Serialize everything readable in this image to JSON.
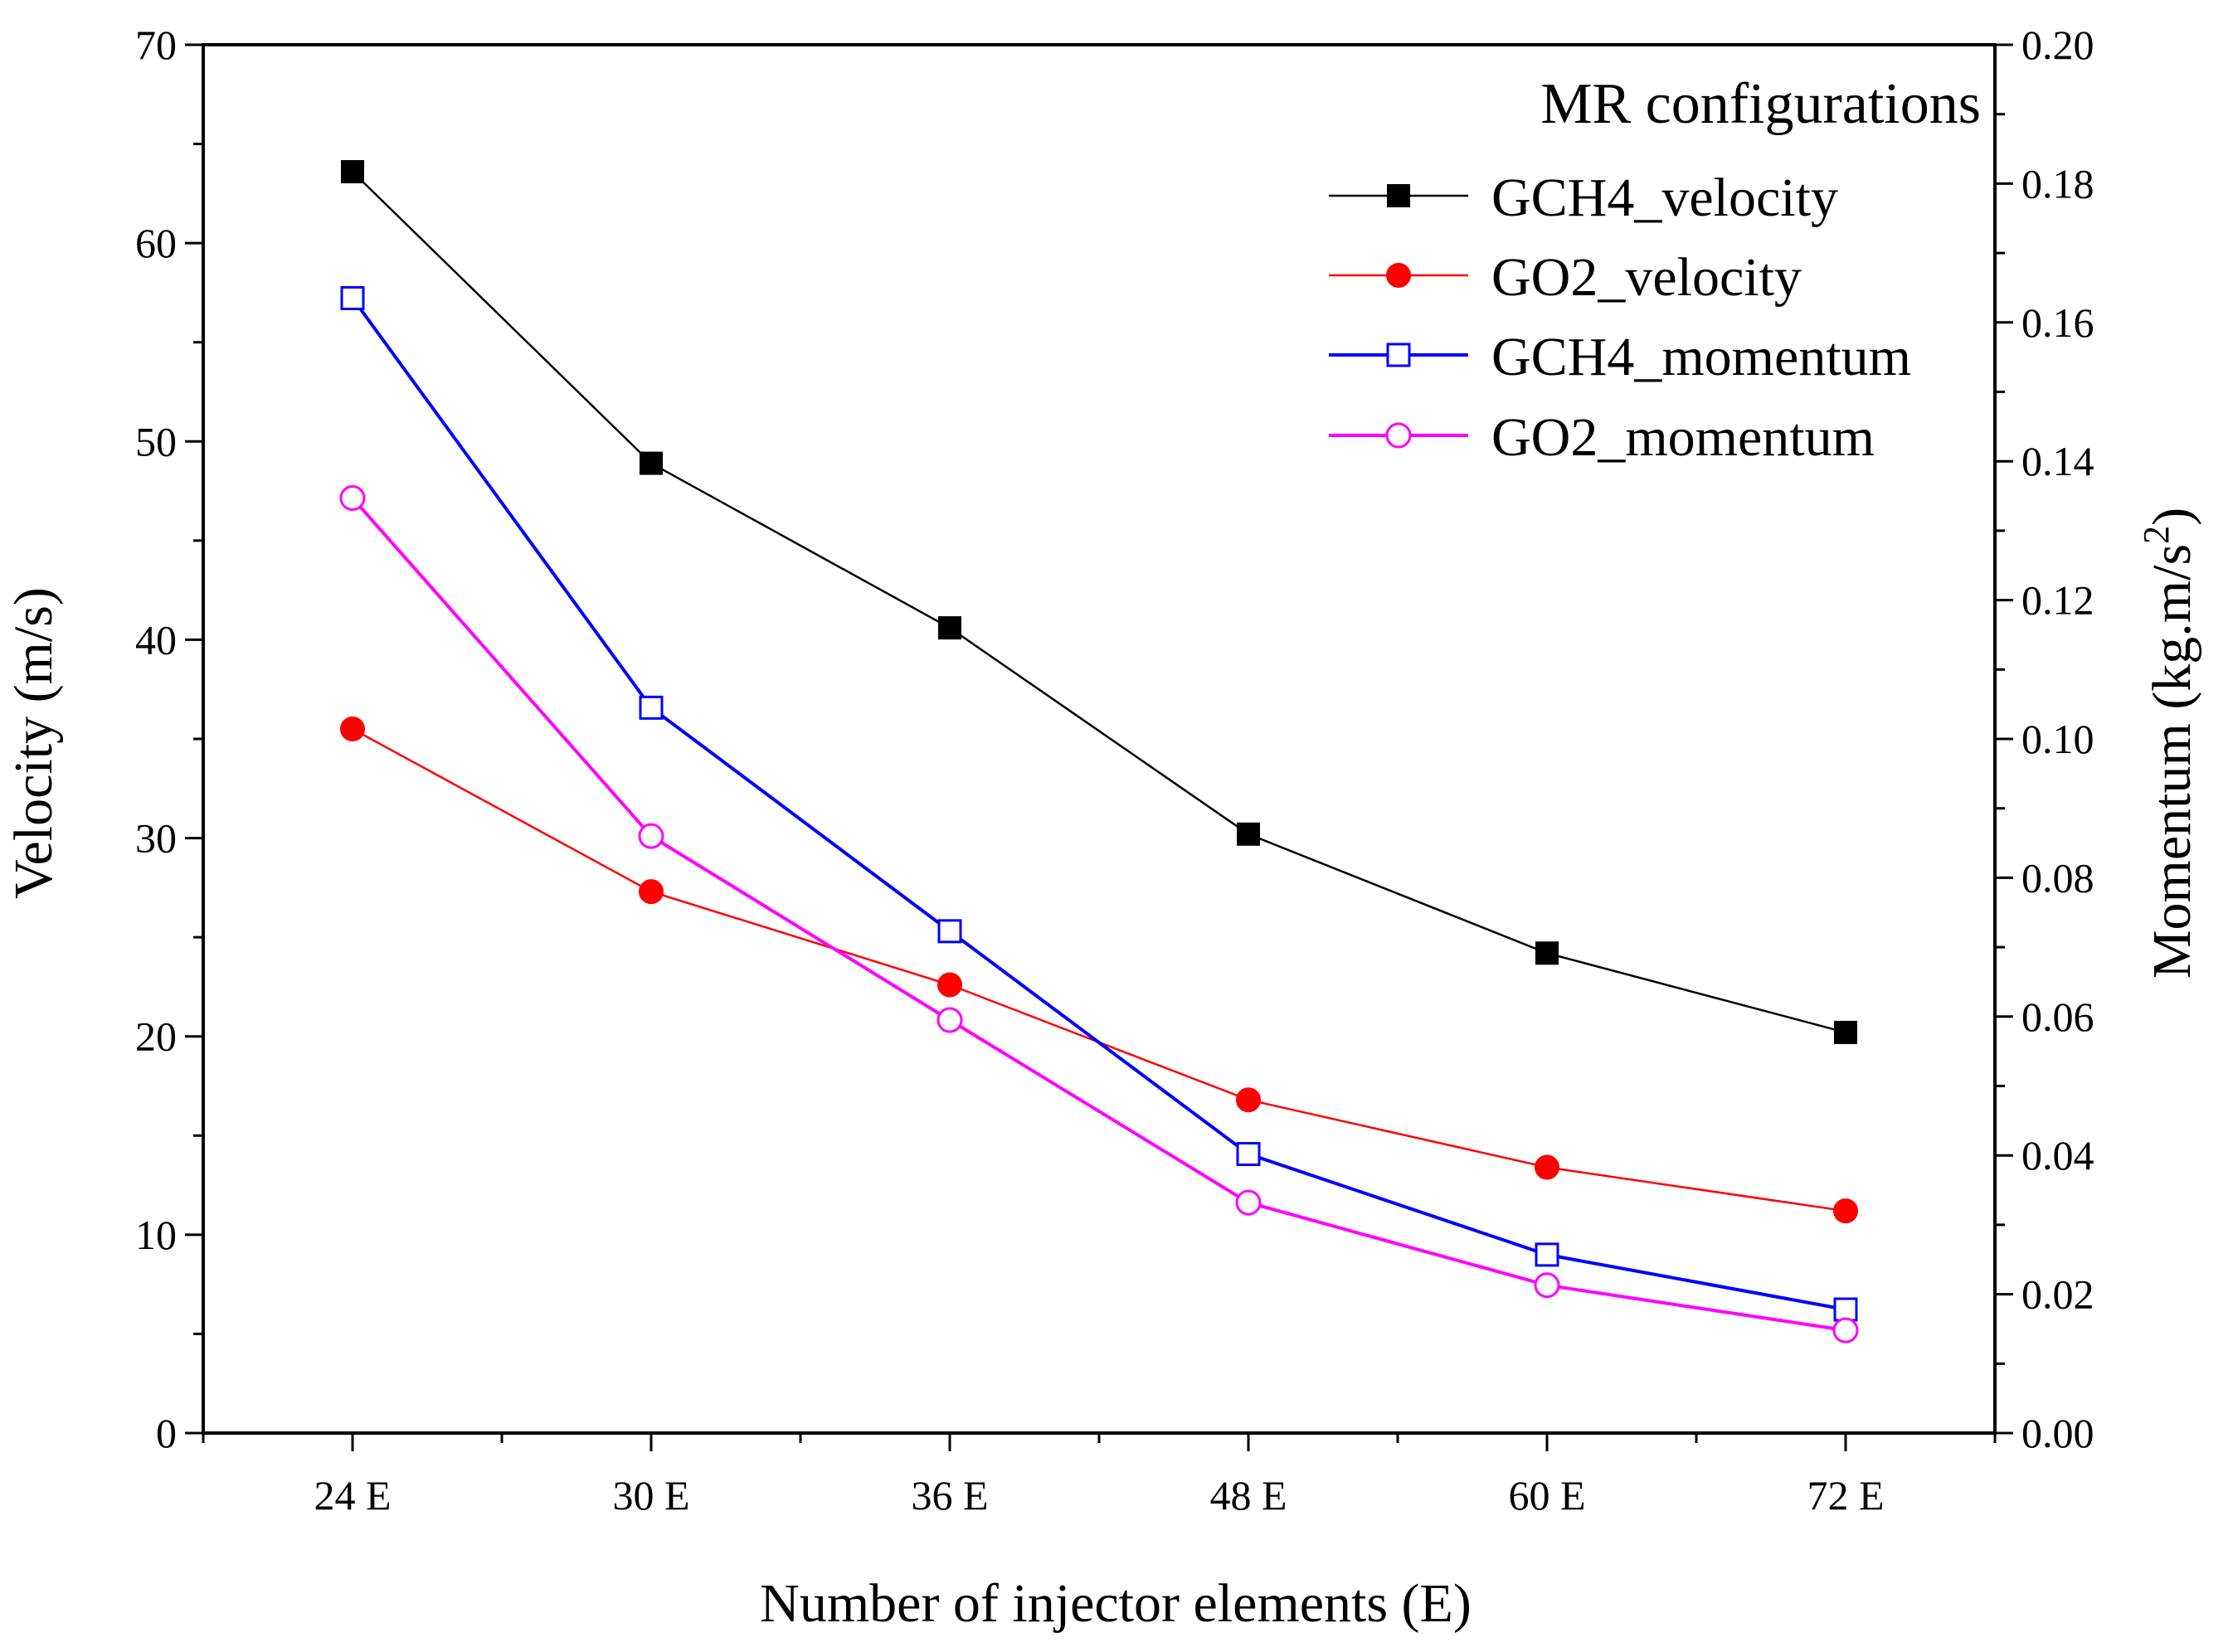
{
  "chart_data": {
    "type": "line",
    "title": "",
    "categories": [
      "24 E",
      "30 E",
      "36 E",
      "48 E",
      "60 E",
      "72 E"
    ],
    "xlabel": "Number of injector elements (E)",
    "ylabel_left": "Velocity (m/s)",
    "ylabel_right_main": "Momentum (kg.m/s",
    "ylabel_right_sup": "2",
    "ylabel_right_end": ")",
    "ylim_left": [
      0,
      70
    ],
    "ylim_right": [
      0,
      0.2
    ],
    "yticks_left": [
      "0",
      "10",
      "20",
      "30",
      "40",
      "50",
      "60",
      "70"
    ],
    "yticks_right": [
      "0.00",
      "0.02",
      "0.04",
      "0.06",
      "0.08",
      "0.10",
      "0.12",
      "0.14",
      "0.16",
      "0.18",
      "0.20"
    ],
    "legend_title": "MR configurations",
    "legend_position": "top-right",
    "grid": false,
    "series": [
      {
        "name": "GCH4_velocity",
        "axis": "left",
        "color": "#000000",
        "marker": "square-filled",
        "values": [
          63.6,
          48.9,
          40.6,
          30.2,
          24.2,
          20.2
        ]
      },
      {
        "name": "GO2_velocity",
        "axis": "left",
        "color": "#ff0000",
        "marker": "circle-filled",
        "values": [
          35.5,
          27.3,
          22.6,
          16.8,
          13.4,
          11.2
        ]
      },
      {
        "name": "GCH4_momentum",
        "axis": "right",
        "color": "#0000ff",
        "marker": "square-open",
        "values": [
          0.1635,
          0.1045,
          0.0723,
          0.0402,
          0.0257,
          0.0178
        ]
      },
      {
        "name": "GO2_momentum",
        "axis": "right",
        "color": "#ff00ff",
        "marker": "circle-open",
        "values": [
          0.1347,
          0.086,
          0.0595,
          0.0332,
          0.0213,
          0.0148
        ]
      }
    ]
  }
}
